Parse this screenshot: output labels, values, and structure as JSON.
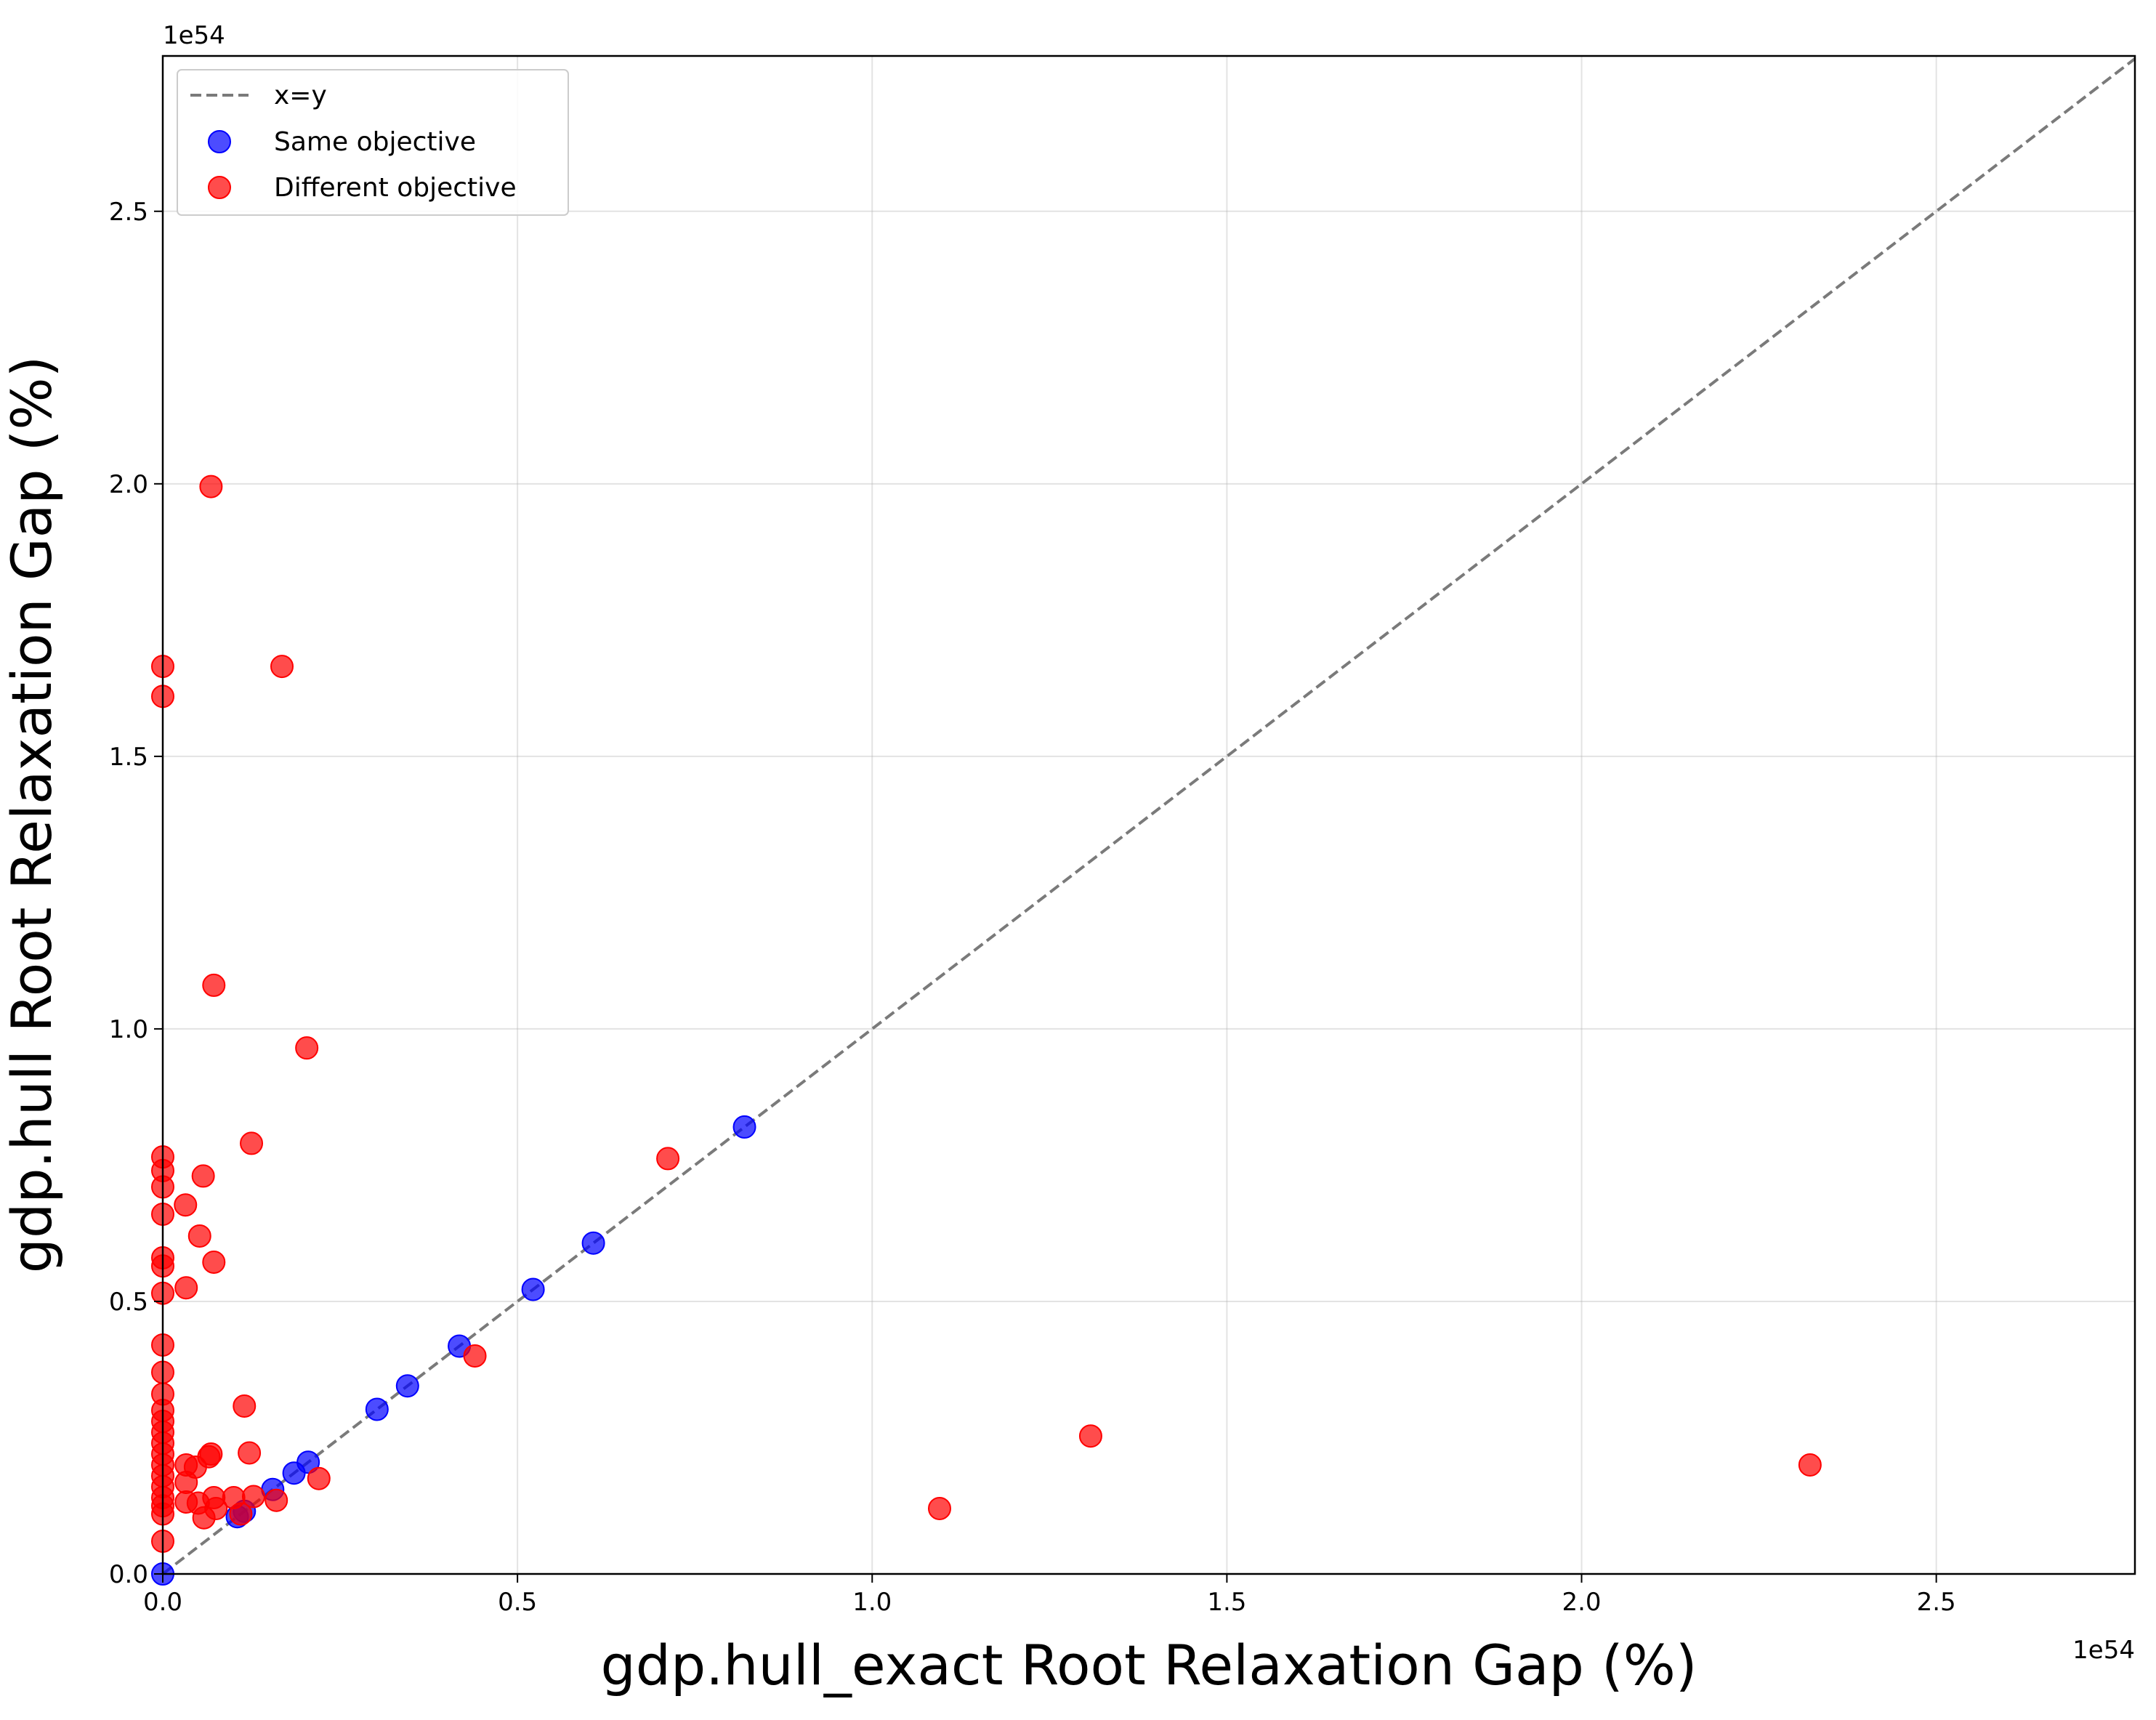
{
  "chart_data": {
    "type": "scatter",
    "xlabel": "gdp.hull_exact Root Relaxation Gap (%)",
    "ylabel": "gdp.hull Root Relaxation Gap (%)",
    "x_offset_text": "1e54",
    "y_offset_text": "1e54",
    "xlim": [
      0,
      2.78
    ],
    "ylim": [
      0,
      2.785
    ],
    "x_ticks": [
      0.0,
      0.5,
      1.0,
      1.5,
      2.0,
      2.5
    ],
    "x_tick_labels": [
      "0.0",
      "0.5",
      "1.0",
      "1.5",
      "2.0",
      "2.5"
    ],
    "y_ticks": [
      0.0,
      0.5,
      1.0,
      1.5,
      2.0,
      2.5
    ],
    "y_tick_labels": [
      "0.0",
      "0.5",
      "1.0",
      "1.5",
      "2.0",
      "2.5"
    ],
    "grid": true,
    "legend_position": "top-left",
    "reference_line": {
      "label": "x=y",
      "style": "dashed",
      "color": "#7a7a7a"
    },
    "series": [
      {
        "name": "Same objective",
        "color": "#0000ff",
        "points": [
          [
            0.0,
            0.0
          ],
          [
            0.105,
            0.105
          ],
          [
            0.115,
            0.115
          ],
          [
            0.155,
            0.155
          ],
          [
            0.185,
            0.185
          ],
          [
            0.205,
            0.205
          ],
          [
            0.302,
            0.302
          ],
          [
            0.345,
            0.345
          ],
          [
            0.418,
            0.418
          ],
          [
            0.522,
            0.522
          ],
          [
            0.607,
            0.607
          ],
          [
            0.82,
            0.82
          ]
        ]
      },
      {
        "name": "Different objective",
        "color": "#ff0000",
        "points": [
          [
            0.0,
            1.665
          ],
          [
            0.0,
            1.61
          ],
          [
            0.0,
            0.765
          ],
          [
            0.0,
            0.74
          ],
          [
            0.0,
            0.71
          ],
          [
            0.0,
            0.66
          ],
          [
            0.0,
            0.58
          ],
          [
            0.0,
            0.565
          ],
          [
            0.0,
            0.515
          ],
          [
            0.0,
            0.42
          ],
          [
            0.0,
            0.37
          ],
          [
            0.0,
            0.33
          ],
          [
            0.0,
            0.3
          ],
          [
            0.0,
            0.28
          ],
          [
            0.0,
            0.26
          ],
          [
            0.0,
            0.24
          ],
          [
            0.0,
            0.22
          ],
          [
            0.0,
            0.2
          ],
          [
            0.0,
            0.18
          ],
          [
            0.0,
            0.16
          ],
          [
            0.0,
            0.14
          ],
          [
            0.0,
            0.125
          ],
          [
            0.0,
            0.11
          ],
          [
            0.0,
            0.06
          ],
          [
            0.068,
            1.995
          ],
          [
            0.072,
            1.08
          ],
          [
            0.168,
            1.665
          ],
          [
            0.203,
            0.965
          ],
          [
            0.125,
            0.79
          ],
          [
            0.057,
            0.73
          ],
          [
            0.032,
            0.677
          ],
          [
            0.052,
            0.62
          ],
          [
            0.072,
            0.572
          ],
          [
            0.033,
            0.525
          ],
          [
            0.115,
            0.308
          ],
          [
            0.122,
            0.222
          ],
          [
            0.068,
            0.22
          ],
          [
            0.065,
            0.215
          ],
          [
            0.033,
            0.2
          ],
          [
            0.046,
            0.196
          ],
          [
            0.033,
            0.168
          ],
          [
            0.22,
            0.175
          ],
          [
            0.072,
            0.14
          ],
          [
            0.1,
            0.14
          ],
          [
            0.128,
            0.142
          ],
          [
            0.16,
            0.135
          ],
          [
            0.033,
            0.132
          ],
          [
            0.05,
            0.13
          ],
          [
            0.075,
            0.12
          ],
          [
            0.058,
            0.103
          ],
          [
            0.11,
            0.11
          ],
          [
            0.44,
            0.4
          ],
          [
            0.712,
            0.762
          ],
          [
            1.095,
            0.12
          ],
          [
            1.308,
            0.253
          ],
          [
            2.322,
            0.2
          ]
        ]
      }
    ]
  }
}
